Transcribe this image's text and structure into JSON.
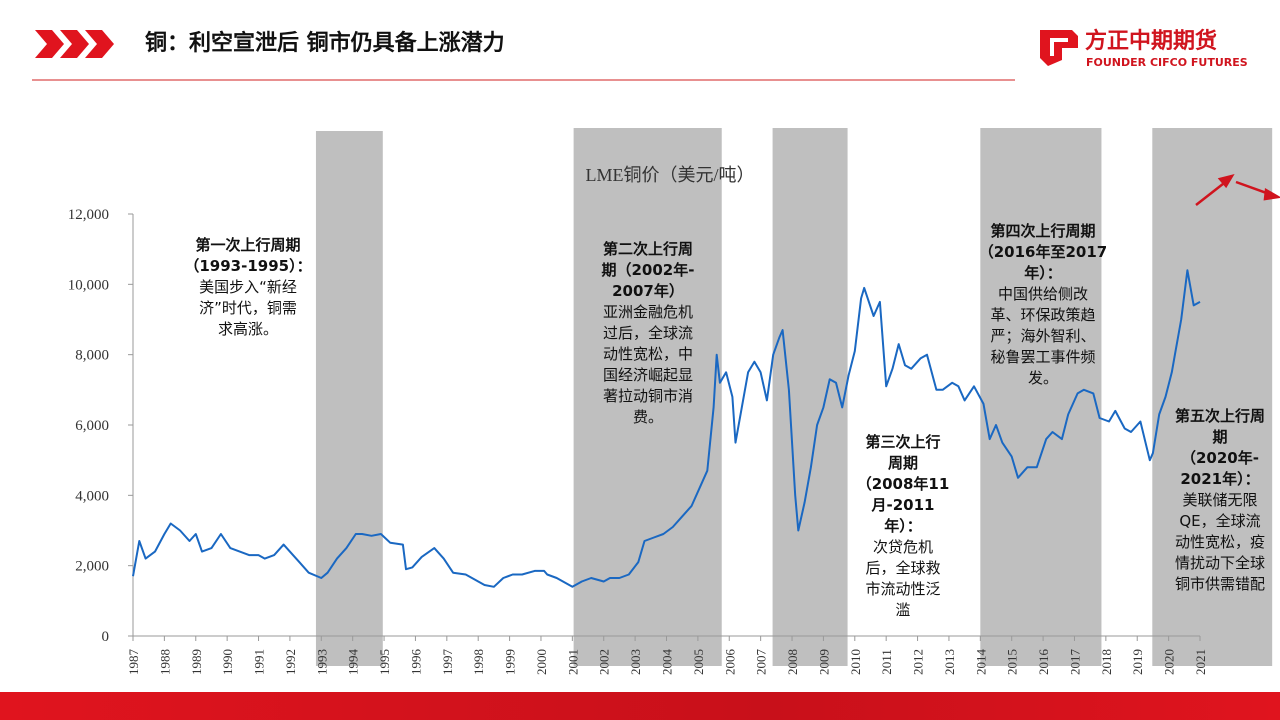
{
  "header": {
    "title": "铜：利空宣泄后 铜市仍具备上涨潜力",
    "logo_cn": "方正中期期货",
    "logo_en": "FOUNDER CIFCO FUTURES"
  },
  "chart_data": {
    "type": "line",
    "title": "LME铜价（美元/吨）",
    "xlim": [
      1987,
      2021
    ],
    "xticks": [
      1987,
      1988,
      1989,
      1990,
      1991,
      1992,
      1993,
      1994,
      1995,
      1996,
      1997,
      1998,
      1999,
      2000,
      2001,
      2002,
      2003,
      2004,
      2005,
      2006,
      2007,
      2008,
      2009,
      2010,
      2011,
      2012,
      2013,
      2014,
      2015,
      2016,
      2017,
      2018,
      2019,
      2020,
      2021
    ],
    "ylim": [
      0,
      12000
    ],
    "yticks": [
      0,
      {
        "value": 2000,
        "label": "2,000"
      },
      {
        "value": 4000,
        "label": "4,000"
      },
      {
        "value": 6000,
        "label": "6,000"
      },
      {
        "value": 8000,
        "label": "8,000"
      },
      {
        "value": 10000,
        "label": "10,000"
      },
      {
        "value": 12000,
        "label": "12,000"
      }
    ],
    "shaded_periods": [
      [
        1992.83,
        1994.96
      ],
      [
        2001.04,
        2005.76
      ],
      [
        2007.38,
        2009.77
      ],
      [
        2014.0,
        2017.86
      ],
      [
        2019.48,
        2023.3
      ]
    ],
    "x": [
      1987.0,
      1987.2,
      1987.4,
      1987.7,
      1988.0,
      1988.2,
      1988.5,
      1988.8,
      1989.0,
      1989.2,
      1989.5,
      1989.8,
      1990.1,
      1990.4,
      1990.7,
      1991.0,
      1991.2,
      1991.5,
      1991.8,
      1992.1,
      1992.3,
      1992.6,
      1993.0,
      1993.2,
      1993.5,
      1993.8,
      1994.1,
      1994.3,
      1994.6,
      1994.9,
      1995.2,
      1995.6,
      1995.7,
      1995.9,
      1996.2,
      1996.6,
      1996.9,
      1997.2,
      1997.6,
      1997.9,
      1998.2,
      1998.5,
      1998.8,
      1999.1,
      1999.4,
      1999.8,
      2000.1,
      2000.2,
      2000.5,
      2000.8,
      2001.0,
      2001.3,
      2001.6,
      2002.0,
      2002.2,
      2002.5,
      2002.8,
      2003.1,
      2003.3,
      2003.6,
      2003.9,
      2004.2,
      2004.5,
      2004.8,
      2005.1,
      2005.3,
      2005.5,
      2005.6,
      2005.7,
      2005.9,
      2006.1,
      2006.2,
      2006.4,
      2006.6,
      2006.8,
      2007.0,
      2007.2,
      2007.4,
      2007.6,
      2007.7,
      2007.9,
      2008.1,
      2008.2,
      2008.4,
      2008.6,
      2008.8,
      2009.0,
      2009.2,
      2009.4,
      2009.6,
      2009.8,
      2010.0,
      2010.2,
      2010.3,
      2010.6,
      2010.8,
      2011.0,
      2011.2,
      2011.4,
      2011.6,
      2011.8,
      2012.1,
      2012.3,
      2012.6,
      2012.8,
      2013.1,
      2013.3,
      2013.5,
      2013.8,
      2014.1,
      2014.3,
      2014.5,
      2014.7,
      2015.0,
      2015.2,
      2015.5,
      2015.8,
      2016.1,
      2016.3,
      2016.6,
      2016.8,
      2017.1,
      2017.3,
      2017.6,
      2017.8,
      2018.1,
      2018.3,
      2018.6,
      2018.8,
      2019.1,
      2019.4,
      2019.5,
      2019.7,
      2019.9,
      2020.1,
      2020.2,
      2020.4,
      2020.6,
      2020.8,
      2021.0
    ],
    "series": [
      {
        "color": "#1a68c2",
        "values": [
          1700,
          2700,
          2200,
          2400,
          2900,
          3200,
          3000,
          2700,
          2900,
          2400,
          2500,
          2900,
          2500,
          2400,
          2300,
          2300,
          2200,
          2300,
          2600,
          2300,
          2100,
          1800,
          1650,
          1800,
          2200,
          2500,
          2900,
          2900,
          2850,
          2900,
          2650,
          2600,
          1900,
          1950,
          2250,
          2500,
          2200,
          1800,
          1750,
          1600,
          1450,
          1400,
          1650,
          1750,
          1750,
          1850,
          1850,
          1750,
          1650,
          1500,
          1400,
          1550,
          1650,
          1550,
          1650,
          1650,
          1750,
          2100,
          2700,
          2800,
          2900,
          3100,
          3400,
          3700,
          4300,
          4700,
          6500,
          8000,
          7200,
          7500,
          6800,
          5500,
          6500,
          7500,
          7800,
          7500,
          6700,
          8000,
          8500,
          8700,
          7000,
          4000,
          3000,
          3800,
          4800,
          6000,
          6500,
          7300,
          7200,
          6500,
          7400,
          8100,
          9600,
          9900,
          9100,
          9500,
          7100,
          7600,
          8300,
          7700,
          7600,
          7900,
          8000,
          7000,
          7000,
          7200,
          7100,
          6700,
          7100,
          6600,
          5600,
          6000,
          5500,
          5100,
          4500,
          4800,
          4800,
          5600,
          5800,
          5600,
          6300,
          6900,
          7000,
          6900,
          6200,
          6100,
          6400,
          5900,
          5800,
          6100,
          5000,
          5200,
          6300,
          6800,
          7500,
          8000,
          9000,
          10400,
          9400,
          9500
        ]
      }
    ],
    "annotations": [
      {
        "title": [
          "第一次上行周期",
          "（1993-1995）："
        ],
        "body": [
          "美国步入“新经",
          "济”时代，铜需",
          "求高涨。"
        ]
      },
      {
        "title": [
          "第二次上行周",
          "期（2002年-",
          "2007年）"
        ],
        "body": [
          "亚洲金融危机",
          "过后，全球流",
          "动性宽松，中",
          "国经济崛起显",
          "著拉动铜市消",
          "费。"
        ]
      },
      {
        "title": [
          "第三次上行",
          "周期",
          "（2008年11",
          "月-2011",
          "年）："
        ],
        "body": [
          "次贷危机",
          "后，全球救",
          "市流动性泛",
          "滥"
        ]
      },
      {
        "title": [
          "第四次上行周期",
          "（2016年至2017",
          "年）："
        ],
        "body": [
          "中国供给侧改",
          "革、环保政策趋",
          "严；海外智利、",
          "秘鲁罢工事件频",
          "发。"
        ]
      },
      {
        "title": [
          "第五次上行周",
          "期",
          "（2020年-",
          "2021年）："
        ],
        "body": [
          "美联储无限",
          "QE，全球流",
          "动性宽松，疫",
          "情扰动下全球",
          "铜市供需错配"
        ]
      }
    ]
  }
}
